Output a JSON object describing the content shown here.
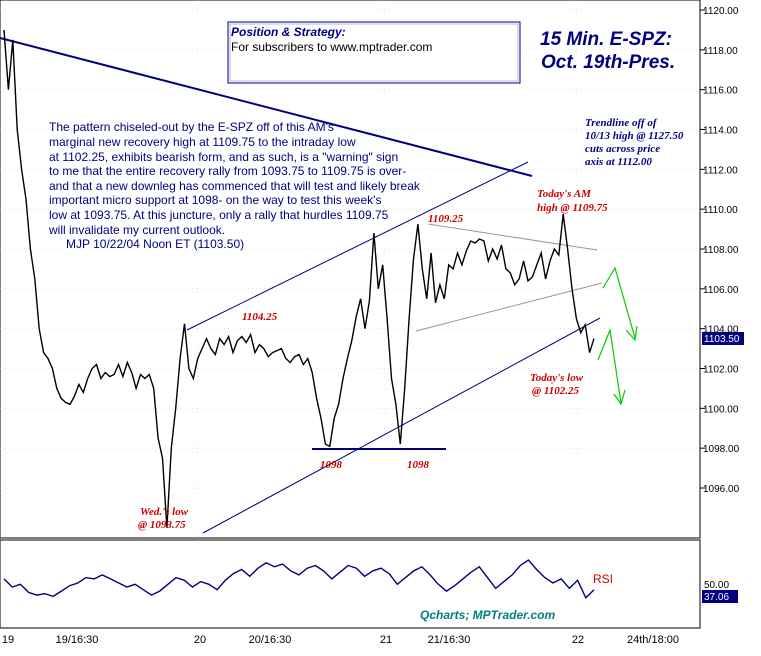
{
  "chart_data": [
    {
      "type": "line",
      "title": "15 Min. E-SPZ:",
      "subtitle": "Oct. 19th-Pres.",
      "ylim": [
        1094,
        1120
      ],
      "y_ticks": [
        "1120.00",
        "1118.00",
        "1116.00",
        "1114.00",
        "1112.00",
        "1110.00",
        "1108.00",
        "1106.00",
        "1104.00",
        "1102.00",
        "1100.00",
        "1098.00",
        "1096.00"
      ],
      "x_labels": [
        "19",
        "19/16:30",
        "20",
        "20/16:30",
        "21",
        "21/16:30",
        "22",
        "24th/18:00"
      ],
      "last_price": "1103.50",
      "grid": true,
      "series": [
        {
          "values": [
            1119,
            1116,
            1118.5,
            1114,
            1112,
            1110.5,
            1108,
            1106.5,
            1104,
            1102.8,
            1102.5,
            1102,
            1101,
            1100.5,
            1100.3,
            1100.2,
            1100.6,
            1101.2,
            1100.8,
            1101.5,
            1102,
            1102.2,
            1101.5,
            1101.8,
            1101.6,
            1101.7,
            1102.2,
            1101.6,
            1102.3,
            1101.8,
            1101,
            1101.7,
            1101.5,
            1101.7,
            1101,
            1098.5,
            1097.5,
            1094,
            1098,
            1100,
            1102.5,
            1104.25,
            1102,
            1101.5,
            1102.5,
            1103,
            1103.5,
            1103,
            1102.7,
            1103.5,
            1103.2,
            1103.6,
            1102.8,
            1103.4,
            1103.6,
            1103.3,
            1103.7,
            1102.8,
            1103.2,
            1103,
            1102.6,
            1102.8,
            1102.9,
            1103,
            1102.5,
            1102.3,
            1102.6,
            1102.7,
            1102.2,
            1102.5,
            1101.8,
            1100.5,
            1099.5,
            1098.2,
            1098.1,
            1099.5,
            1100.2,
            1101.5,
            1102.5,
            1103.4,
            1104.6,
            1105.5,
            1104,
            1105.4,
            1108.8,
            1106,
            1107.2,
            1104.5,
            1101.5,
            1100.2,
            1098.2,
            1101,
            1104.5,
            1107.5,
            1109.25,
            1107,
            1105.5,
            1107.8,
            1105.3,
            1106.2,
            1105.5,
            1107.2,
            1107,
            1107.8,
            1107.2,
            1107.9,
            1108.4,
            1108.3,
            1108.5,
            1108.4,
            1107.4,
            1108,
            1107.5,
            1108.2,
            1107,
            1106.8,
            1106.2,
            1106.5,
            1107.4,
            1106.4,
            1106.6,
            1107.2,
            1107.8,
            1106.5,
            1107.4,
            1108,
            1107.7,
            1109.75,
            1108,
            1106,
            1104.5,
            1103.8,
            1104.2,
            1102.8,
            1103.5
          ]
        }
      ],
      "annotations": [
        {
          "text": "1104.25",
          "color": "#cc0000"
        },
        {
          "text": "1109.25",
          "color": "#cc0000"
        },
        {
          "text": "1098",
          "color": "#cc0000"
        },
        {
          "text": "1098",
          "color": "#cc0000"
        },
        {
          "text": "Wed.'s low",
          "color": "#cc0000"
        },
        {
          "text": "@ 1093.75",
          "color": "#cc0000"
        },
        {
          "text": "Today's AM",
          "color": "#cc0000"
        },
        {
          "text": "high  @ 1109.75",
          "color": "#cc0000"
        },
        {
          "text": "Today's low",
          "color": "#cc0000"
        },
        {
          "text": "@ 1102.25",
          "color": "#cc0000"
        }
      ]
    },
    {
      "type": "line",
      "title": "",
      "ylim": [
        0,
        100
      ],
      "y_ticks": [
        "50.00"
      ],
      "series": [
        {
          "name": "RSI",
          "values": [
            52,
            46,
            48,
            42,
            40,
            41,
            39,
            43,
            47,
            49,
            53,
            52,
            55,
            52,
            49,
            46,
            48,
            44,
            40,
            43,
            48,
            53,
            51,
            46,
            50,
            48,
            44,
            51,
            56,
            59,
            54,
            60,
            64,
            61,
            63,
            58,
            55,
            60,
            62,
            58,
            52,
            57,
            62,
            60,
            54,
            58,
            60,
            56,
            48,
            53,
            58,
            61,
            55,
            48,
            43,
            47,
            52,
            57,
            61,
            53,
            45,
            50,
            55,
            62,
            66,
            59,
            53,
            49,
            52,
            45,
            51,
            38,
            44
          ]
        }
      ],
      "last_value": "37.06"
    }
  ],
  "labels": {
    "trendline_note": [
      "Trendline off of",
      "10/13 high @ 1127.50",
      "cuts across price",
      "axis at 1112.00"
    ],
    "commentary": [
      "The pattern chiseled-out by the E-SPZ off of this AM's",
      "marginal new recovery high at 1109.75 to the intraday low",
      "at 1102.25, exhibits bearish form, and as such, is a \"warning\" sign",
      "to me that the entire recovery rally from 1093.75 to 1109.75 is over-",
      "and that a new downleg has commenced that will test and likely break",
      "important micro support at 1098- on the way to test this week's",
      "low at 1093.75. At this juncture, only a rally that hurdles 1109.75",
      "will invalidate my current outlook."
    ],
    "signature": "MJP 10/22/04 Noon ET (1103.50)",
    "position_title": "Position & Strategy:",
    "position_body": "For subscribers to www.mptrader.com",
    "credit": "Qcharts; MPTrader.com"
  },
  "colors": {
    "price_line": "#000000",
    "trendline": "#000080",
    "wedge_line": "#999999",
    "arrow": "#00cc00",
    "annotation": "#cc0000",
    "grid": "#c8c8c8",
    "last_price_bg": "#000080"
  }
}
